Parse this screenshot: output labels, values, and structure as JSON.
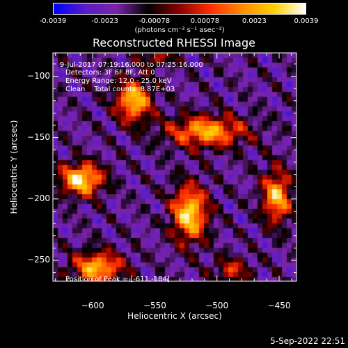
{
  "colorbar": {
    "ticks": [
      "-0.0039",
      "-0.0023",
      "-0.00078",
      "0.00078",
      "0.0023",
      "0.0039"
    ],
    "unit": "(photons cm⁻² s⁻¹ asec⁻²)",
    "colors": [
      "#0000ff",
      "#5a1bc8",
      "#7b24a8",
      "#000000",
      "#8b0000",
      "#ff3000",
      "#ff8c00",
      "#ffd000",
      "#ffffff"
    ]
  },
  "annotations": {
    "time": "9-Jul-2017 07:19:16.000 to 07:25:16.000",
    "detectors": "Detectors: 3F 6F 8F, Att 0",
    "energy": "Energy Range: 12.0 - 25.0 keV",
    "clean": "Clean    Total counts: 8.87E+03",
    "peak": "Position of Peak = [-611,-184]"
  },
  "date_stamp": "5-Sep-2022 22:51",
  "chart_data": {
    "type": "heatmap",
    "title": "Reconstructed RHESSI Image",
    "xlabel": "Heliocentric X (arcsec)",
    "ylabel": "Heliocentric Y (arcsec)",
    "xlim": [
      -632,
      -436
    ],
    "ylim": [
      -267,
      -81
    ],
    "xticks": [
      -600,
      -550,
      -500,
      -450
    ],
    "yticks": [
      -100,
      -150,
      -200,
      -250
    ],
    "clim": [
      -0.0039,
      0.0039
    ],
    "background_level": -0.0018,
    "sources": [
      {
        "x": -609,
        "y": -184,
        "amp": 0.0052,
        "sx": 12,
        "sy": 9
      },
      {
        "x": -522,
        "y": -212,
        "amp": 0.005,
        "sx": 10,
        "sy": 16
      },
      {
        "x": -567,
        "y": -120,
        "amp": 0.0046,
        "sx": 10,
        "sy": 12
      },
      {
        "x": -508,
        "y": -145,
        "amp": 0.0042,
        "sx": 22,
        "sy": 9
      },
      {
        "x": -452,
        "y": -198,
        "amp": 0.0044,
        "sx": 8,
        "sy": 15
      },
      {
        "x": -596,
        "y": -256,
        "amp": 0.0044,
        "sx": 14,
        "sy": 9
      },
      {
        "x": -488,
        "y": -258,
        "amp": 0.0024,
        "sx": 10,
        "sy": 7
      },
      {
        "x": -548,
        "y": -85,
        "amp": 0.002,
        "sx": 10,
        "sy": 5
      }
    ]
  }
}
